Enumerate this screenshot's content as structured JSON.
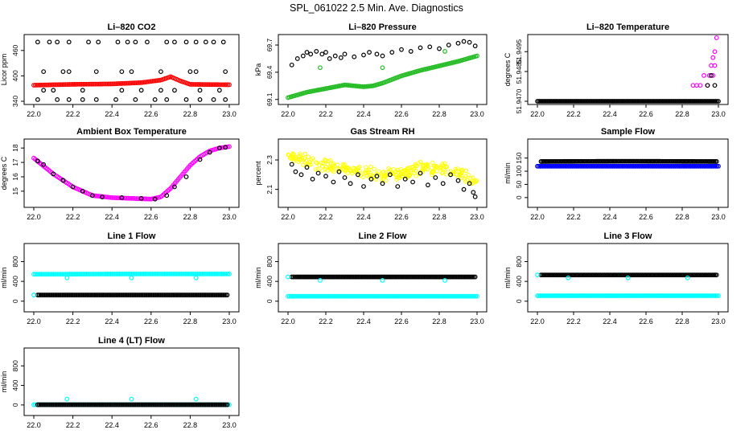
{
  "title": "SPL_061022  2.5 Min. Ave. Diagnostics",
  "colors": {
    "black": "#000000",
    "red": "#ff0000",
    "green": "#22bb22",
    "magenta": "#ff00ff",
    "yellow": "#ffff00",
    "cyan": "#00ffff",
    "blue": "#0000ff"
  },
  "chart_data": [
    {
      "type": "scatter",
      "title": "Li–820 CO2",
      "ylabel": "Licor ppm",
      "xlim": [
        22.0,
        23.0
      ],
      "ylim": [
        340,
        490
      ],
      "xticks": [
        "22.0",
        "22.2",
        "22.4",
        "22.6",
        "22.8",
        "23.0"
      ],
      "yticks": [
        "340",
        "400",
        "460"
      ],
      "series": [
        {
          "name": "red",
          "color": "#ff0000",
          "style": "band",
          "x": [
            22.0,
            22.2,
            22.4,
            22.55,
            22.65,
            22.7,
            22.75,
            22.8,
            23.0
          ],
          "y": [
            378,
            380,
            381,
            384,
            390,
            398,
            388,
            380,
            379
          ]
        },
        {
          "name": "black-460",
          "color": "#000000",
          "style": "points",
          "x": [
            22.02,
            22.08,
            22.12,
            22.18,
            22.28,
            22.33,
            22.43,
            22.48,
            22.52,
            22.58,
            22.68,
            22.72,
            22.78,
            22.83,
            22.88,
            22.92,
            22.97
          ],
          "y": [
            480,
            480,
            480,
            480,
            480,
            480,
            480,
            480,
            480,
            480,
            480,
            480,
            480,
            480,
            480,
            480,
            480
          ]
        },
        {
          "name": "black-400",
          "color": "#000000",
          "style": "points",
          "x": [
            22.05,
            22.15,
            22.18,
            22.32,
            22.45,
            22.5,
            22.65,
            22.8,
            22.83,
            22.98
          ],
          "y": [
            410,
            410,
            410,
            410,
            410,
            410,
            410,
            410,
            410,
            410
          ]
        },
        {
          "name": "black-360",
          "color": "#000000",
          "style": "points",
          "x": [
            22.02,
            22.12,
            22.18,
            22.25,
            22.32,
            22.42,
            22.52,
            22.62,
            22.68,
            22.78,
            22.85,
            22.92,
            22.98
          ],
          "y": [
            344,
            344,
            344,
            344,
            344,
            344,
            344,
            344,
            344,
            344,
            344,
            344,
            344
          ]
        },
        {
          "name": "black-370",
          "color": "#000000",
          "style": "points",
          "x": [
            22.05,
            22.1,
            22.25,
            22.45,
            22.55,
            22.65,
            22.72,
            22.85,
            22.95
          ],
          "y": [
            366,
            366,
            366,
            366,
            366,
            366,
            366,
            366,
            366
          ]
        }
      ]
    },
    {
      "type": "scatter",
      "title": "Li–820 Pressure",
      "ylabel": "kPa",
      "xlim": [
        22.0,
        23.0
      ],
      "ylim": [
        69.08,
        69.78
      ],
      "xticks": [
        "22.0",
        "22.2",
        "22.4",
        "22.6",
        "22.8",
        "23.0"
      ],
      "yticks": [
        "69.1",
        "69.4",
        "69.7"
      ],
      "series": [
        {
          "name": "green",
          "color": "#22bb22",
          "style": "band",
          "x": [
            22.0,
            22.1,
            22.2,
            22.3,
            22.4,
            22.45,
            22.5,
            22.6,
            22.7,
            22.8,
            22.9,
            23.0
          ],
          "y": [
            69.12,
            69.18,
            69.22,
            69.26,
            69.24,
            69.25,
            69.28,
            69.36,
            69.42,
            69.47,
            69.52,
            69.58
          ]
        },
        {
          "name": "green-outliers",
          "color": "#22bb22",
          "style": "points",
          "x": [
            22.17,
            22.5,
            22.83
          ],
          "y": [
            69.45,
            69.45,
            69.63
          ]
        },
        {
          "name": "black",
          "color": "#000000",
          "style": "points",
          "x": [
            22.02,
            22.05,
            22.08,
            22.1,
            22.12,
            22.15,
            22.18,
            22.2,
            22.22,
            22.25,
            22.28,
            22.3,
            22.35,
            22.4,
            22.43,
            22.47,
            22.5,
            22.55,
            22.6,
            22.65,
            22.7,
            22.75,
            22.8,
            22.85,
            22.9,
            22.93,
            22.96,
            22.99
          ],
          "y": [
            69.48,
            69.55,
            69.58,
            69.62,
            69.6,
            69.63,
            69.6,
            69.62,
            69.55,
            69.58,
            69.56,
            69.6,
            69.57,
            69.59,
            69.62,
            69.6,
            69.58,
            69.62,
            69.65,
            69.63,
            69.67,
            69.68,
            69.66,
            69.7,
            69.72,
            69.74,
            69.73,
            69.69
          ]
        }
      ]
    },
    {
      "type": "scatter",
      "title": "Li–820 Temperature",
      "ylabel": "degrees C",
      "xlim": [
        22.0,
        23.0
      ],
      "ylim": [
        51.947,
        51.9502
      ],
      "xticks": [
        "22.0",
        "22.2",
        "22.4",
        "22.6",
        "22.8",
        "23.0"
      ],
      "yticks": [
        "51.9470",
        "51.9485",
        "51.9495"
      ],
      "series": [
        {
          "name": "black",
          "color": "#000000",
          "style": "band",
          "x": [
            22.0,
            22.25,
            22.5,
            22.75,
            23.0
          ],
          "y": [
            51.947,
            51.947,
            51.947,
            51.947,
            51.947
          ]
        },
        {
          "name": "magenta",
          "color": "#ff00ff",
          "style": "points",
          "x": [
            22.86,
            22.88,
            22.9,
            22.92,
            22.94,
            22.95,
            22.96,
            22.97,
            22.97,
            22.98,
            22.98,
            22.99
          ],
          "y": [
            51.9478,
            51.9478,
            51.9478,
            51.9483,
            51.9478,
            51.9483,
            51.9488,
            51.9483,
            51.9492,
            51.9488,
            51.9495,
            51.9502
          ]
        },
        {
          "name": "black-upper",
          "color": "#000000",
          "style": "points",
          "x": [
            22.94,
            22.96,
            22.98
          ],
          "y": [
            51.9478,
            51.9483,
            51.9478
          ]
        }
      ]
    },
    {
      "type": "scatter",
      "title": "Ambient Box Temperature",
      "ylabel": "degrees C",
      "xlim": [
        22.0,
        23.0
      ],
      "ylim": [
        14.1,
        18.4
      ],
      "xticks": [
        "22.0",
        "22.2",
        "22.4",
        "22.6",
        "22.8",
        "23.0"
      ],
      "yticks": [
        "15",
        "16",
        "17",
        "18"
      ],
      "series": [
        {
          "name": "magenta",
          "color": "#ff00ff",
          "style": "band",
          "x": [
            22.0,
            22.1,
            22.2,
            22.3,
            22.4,
            22.5,
            22.6,
            22.65,
            22.7,
            22.75,
            22.8,
            22.85,
            22.9,
            22.95,
            23.0
          ],
          "y": [
            17.3,
            16.2,
            15.3,
            14.7,
            14.55,
            14.5,
            14.45,
            14.6,
            15.2,
            16.0,
            16.8,
            17.4,
            17.8,
            18.0,
            18.1
          ]
        },
        {
          "name": "black",
          "color": "#000000",
          "style": "points",
          "x": [
            22.02,
            22.05,
            22.1,
            22.15,
            22.2,
            22.25,
            22.3,
            22.35,
            22.45,
            22.55,
            22.62,
            22.68,
            22.72,
            22.78,
            22.85,
            22.9,
            22.95,
            22.98
          ],
          "y": [
            17.1,
            16.85,
            16.2,
            15.75,
            15.3,
            15.0,
            14.7,
            14.6,
            14.55,
            14.5,
            14.45,
            14.7,
            15.3,
            16.0,
            17.2,
            17.7,
            18.0,
            18.05
          ]
        }
      ]
    },
    {
      "type": "scatter",
      "title": "Gas Stream RH",
      "ylabel": "percent",
      "xlim": [
        22.0,
        23.0
      ],
      "ylim": [
        2.0,
        2.42
      ],
      "xticks": [
        "22.0",
        "22.2",
        "22.4",
        "22.6",
        "22.8",
        "23.0"
      ],
      "yticks": [
        "2.1",
        "2.3"
      ],
      "series": [
        {
          "name": "yellow",
          "color": "#ffff00",
          "style": "cloud",
          "x": [
            22.0,
            22.1,
            22.2,
            22.3,
            22.4,
            22.5,
            22.6,
            22.7,
            22.8,
            22.9,
            23.0
          ],
          "y": [
            2.33,
            2.3,
            2.26,
            2.24,
            2.22,
            2.2,
            2.21,
            2.24,
            2.25,
            2.22,
            2.14
          ]
        },
        {
          "name": "black",
          "color": "#000000",
          "style": "points",
          "x": [
            22.02,
            22.04,
            22.07,
            22.1,
            22.13,
            22.16,
            22.2,
            22.24,
            22.27,
            22.3,
            22.33,
            22.37,
            22.4,
            22.44,
            22.47,
            22.5,
            22.54,
            22.58,
            22.62,
            22.66,
            22.7,
            22.74,
            22.78,
            22.82,
            22.86,
            22.9,
            22.93,
            22.96,
            22.98,
            22.99
          ],
          "y": [
            2.27,
            2.22,
            2.2,
            2.25,
            2.17,
            2.21,
            2.19,
            2.15,
            2.22,
            2.18,
            2.14,
            2.2,
            2.12,
            2.17,
            2.19,
            2.14,
            2.2,
            2.12,
            2.17,
            2.15,
            2.21,
            2.13,
            2.18,
            2.14,
            2.2,
            2.16,
            2.1,
            2.14,
            2.08,
            2.05
          ]
        }
      ]
    },
    {
      "type": "scatter",
      "title": "Sample Flow",
      "ylabel": "ml/min",
      "xlim": [
        22.0,
        23.0
      ],
      "ylim": [
        -25,
        210
      ],
      "xticks": [
        "22.0",
        "22.2",
        "22.4",
        "22.6",
        "22.8",
        "23.0"
      ],
      "yticks": [
        "0",
        "50",
        "100",
        "150"
      ],
      "series": [
        {
          "name": "blue",
          "color": "#0000ff",
          "style": "band",
          "x": [
            22.0,
            22.5,
            23.0
          ],
          "y": [
            119,
            119,
            119
          ]
        },
        {
          "name": "black",
          "color": "#000000",
          "style": "band",
          "x": [
            22.02,
            22.5,
            22.99
          ],
          "y": [
            137,
            138,
            137
          ]
        }
      ]
    },
    {
      "type": "scatter",
      "title": "Line 1 Flow",
      "ylabel": "ml/min",
      "xlim": [
        22.0,
        23.0
      ],
      "ylim": [
        -150,
        1100
      ],
      "xticks": [
        "22.0",
        "22.2",
        "22.4",
        "22.6",
        "22.8",
        "23.0"
      ],
      "yticks": [
        "0",
        "400",
        "800"
      ],
      "series": [
        {
          "name": "cyan",
          "color": "#00ffff",
          "style": "band",
          "x": [
            22.0,
            22.5,
            23.0
          ],
          "y": [
            545,
            550,
            550
          ]
        },
        {
          "name": "black",
          "color": "#000000",
          "style": "band",
          "x": [
            22.02,
            22.5,
            22.99
          ],
          "y": [
            125,
            125,
            125
          ]
        },
        {
          "name": "cyan-outliers",
          "color": "#00ffff",
          "style": "points",
          "x": [
            22.0,
            22.17,
            22.5,
            22.83
          ],
          "y": [
            125,
            470,
            470,
            470
          ]
        }
      ]
    },
    {
      "type": "scatter",
      "title": "Line 2 Flow",
      "ylabel": "ml/min",
      "xlim": [
        22.0,
        23.0
      ],
      "ylim": [
        -150,
        1100
      ],
      "xticks": [
        "22.0",
        "22.2",
        "22.4",
        "22.6",
        "22.8",
        "23.0"
      ],
      "yticks": [
        "0",
        "400",
        "800"
      ],
      "series": [
        {
          "name": "cyan",
          "color": "#00ffff",
          "style": "band",
          "x": [
            22.0,
            22.5,
            23.0
          ],
          "y": [
            100,
            100,
            100
          ]
        },
        {
          "name": "black",
          "color": "#000000",
          "style": "band",
          "x": [
            22.02,
            22.5,
            22.99
          ],
          "y": [
            490,
            490,
            490
          ]
        },
        {
          "name": "cyan-outliers",
          "color": "#00ffff",
          "style": "points",
          "x": [
            22.0,
            22.17,
            22.5,
            22.83
          ],
          "y": [
            490,
            420,
            420,
            420
          ]
        }
      ]
    },
    {
      "type": "scatter",
      "title": "Line 3 Flow",
      "ylabel": "ml/min",
      "xlim": [
        22.0,
        23.0
      ],
      "ylim": [
        -150,
        1100
      ],
      "xticks": [
        "22.0",
        "22.2",
        "22.4",
        "22.6",
        "22.8",
        "23.0"
      ],
      "yticks": [
        "0",
        "400",
        "800"
      ],
      "series": [
        {
          "name": "cyan",
          "color": "#00ffff",
          "style": "band",
          "x": [
            22.0,
            22.5,
            23.0
          ],
          "y": [
            110,
            110,
            110
          ]
        },
        {
          "name": "black",
          "color": "#000000",
          "style": "band",
          "x": [
            22.02,
            22.5,
            22.99
          ],
          "y": [
            530,
            530,
            530
          ]
        },
        {
          "name": "cyan-outliers",
          "color": "#00ffff",
          "style": "points",
          "x": [
            22.0,
            22.17,
            22.5,
            22.83
          ],
          "y": [
            530,
            470,
            470,
            470
          ]
        }
      ]
    },
    {
      "type": "scatter",
      "title": "Line 4 (LT) Flow",
      "ylabel": "ml/min",
      "xlim": [
        22.0,
        23.0
      ],
      "ylim": [
        -150,
        1100
      ],
      "xticks": [
        "22.0",
        "22.2",
        "22.4",
        "22.6",
        "22.8",
        "23.0"
      ],
      "yticks": [
        "0",
        "400",
        "800"
      ],
      "series": [
        {
          "name": "cyan",
          "color": "#00ffff",
          "style": "band",
          "x": [
            22.0,
            22.5,
            23.0
          ],
          "y": [
            5,
            5,
            5
          ]
        },
        {
          "name": "black",
          "color": "#000000",
          "style": "band",
          "x": [
            22.02,
            22.5,
            22.99
          ],
          "y": [
            5,
            5,
            5
          ]
        },
        {
          "name": "cyan-outliers",
          "color": "#00ffff",
          "style": "points",
          "x": [
            22.17,
            22.5,
            22.83
          ],
          "y": [
            120,
            120,
            120
          ]
        }
      ]
    }
  ]
}
